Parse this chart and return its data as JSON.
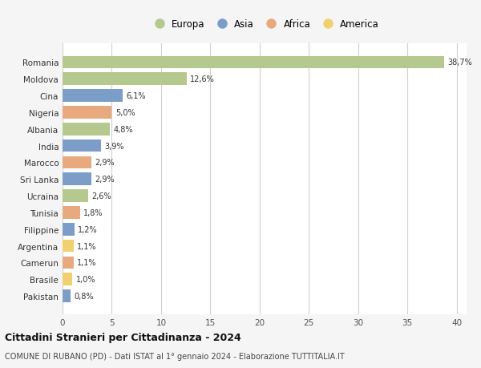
{
  "countries": [
    "Romania",
    "Moldova",
    "Cina",
    "Nigeria",
    "Albania",
    "India",
    "Marocco",
    "Sri Lanka",
    "Ucraina",
    "Tunisia",
    "Filippine",
    "Argentina",
    "Camerun",
    "Brasile",
    "Pakistan"
  ],
  "values": [
    38.7,
    12.6,
    6.1,
    5.0,
    4.8,
    3.9,
    2.9,
    2.9,
    2.6,
    1.8,
    1.2,
    1.1,
    1.1,
    1.0,
    0.8
  ],
  "labels": [
    "38,7%",
    "12,6%",
    "6,1%",
    "5,0%",
    "4,8%",
    "3,9%",
    "2,9%",
    "2,9%",
    "2,6%",
    "1,8%",
    "1,2%",
    "1,1%",
    "1,1%",
    "1,0%",
    "0,8%"
  ],
  "continents": [
    "Europa",
    "Europa",
    "Asia",
    "Africa",
    "Europa",
    "Asia",
    "Africa",
    "Asia",
    "Europa",
    "Africa",
    "Asia",
    "America",
    "Africa",
    "America",
    "Asia"
  ],
  "continent_colors": {
    "Europa": "#b5c98e",
    "Asia": "#7b9dc8",
    "Africa": "#e8a97e",
    "America": "#f0d070"
  },
  "legend_order": [
    "Europa",
    "Asia",
    "Africa",
    "America"
  ],
  "xlim": [
    0,
    41
  ],
  "xticks": [
    0,
    5,
    10,
    15,
    20,
    25,
    30,
    35,
    40
  ],
  "title": "Cittadini Stranieri per Cittadinanza - 2024",
  "subtitle": "COMUNE DI RUBANO (PD) - Dati ISTAT al 1° gennaio 2024 - Elaborazione TUTTITALIA.IT",
  "bg_color": "#f5f5f5",
  "bar_bg_color": "#ffffff",
  "grid_color": "#d0d0d0"
}
